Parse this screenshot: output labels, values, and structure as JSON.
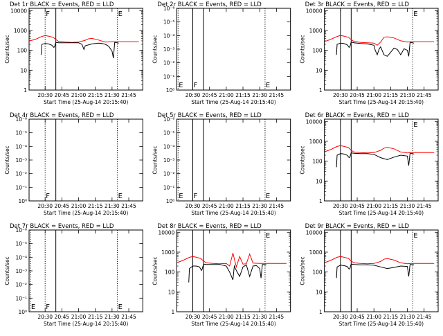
{
  "chart_data": [
    {
      "type": "line",
      "title": "Det 1r BLACK = Events, RED = LLD",
      "xlabel": "Start Time (25-Aug-14 20:15:40)",
      "ylabel": "Counts/sec",
      "x_tick_labels": [
        "20:30",
        "20:45",
        "21:00",
        "21:15",
        "21:30",
        "21:45"
      ],
      "x_tick_values": [
        20.5,
        20.75,
        21.0,
        21.25,
        21.5,
        21.75
      ],
      "xlim": [
        20.26,
        21.96
      ],
      "y_scale": "log",
      "y_tick_labels": [
        "1",
        "10",
        "100",
        "1000",
        "10000"
      ],
      "y_tick_values": [
        1,
        10,
        100,
        1000,
        10000
      ],
      "ylim": [
        1,
        13000
      ],
      "markers": [
        {
          "label": "F",
          "x": 20.5,
          "style": "dotted"
        },
        {
          "label": "",
          "x": 20.66,
          "style": "solid"
        },
        {
          "label": "E",
          "x": 21.58,
          "style": "dotted"
        }
      ],
      "series": [
        {
          "color": "#ff0000",
          "x": [
            20.27,
            20.35,
            20.45,
            20.5,
            20.55,
            20.62,
            20.66,
            20.7,
            20.8,
            20.9,
            21.0,
            21.1,
            21.15,
            21.2,
            21.3,
            21.4,
            21.5,
            21.55,
            21.6,
            21.7,
            21.8,
            21.9
          ],
          "y": [
            300,
            350,
            500,
            550,
            520,
            450,
            350,
            280,
            260,
            250,
            260,
            320,
            380,
            400,
            330,
            260,
            270,
            270,
            270,
            270,
            270,
            270
          ]
        },
        {
          "color": "#000000",
          "x": [
            20.44,
            20.45,
            20.5,
            20.55,
            20.6,
            20.63,
            20.64,
            20.66,
            20.7,
            20.8,
            20.9,
            21.0,
            21.05,
            21.08,
            21.1,
            21.2,
            21.3,
            21.35,
            21.4,
            21.45,
            21.5,
            21.52,
            21.54,
            21.55,
            21.6
          ],
          "y": [
            60,
            200,
            220,
            210,
            180,
            140,
            150,
            250,
            240,
            240,
            240,
            240,
            200,
            110,
            170,
            210,
            230,
            220,
            200,
            160,
            90,
            40,
            250,
            250,
            230
          ]
        }
      ]
    },
    {
      "type": "line",
      "title": "Det 2r BLACK = Events, RED = LLD",
      "xlabel": "Start Time (25-Aug-14 20:15:40)",
      "ylabel": "Counts/sec",
      "x_tick_labels": [
        "20:30",
        "20:45",
        "21:00",
        "21:15",
        "21:30",
        "21:45"
      ],
      "x_tick_values": [
        20.5,
        20.75,
        21.0,
        21.25,
        21.5,
        21.75
      ],
      "xlim": [
        20.26,
        21.96
      ],
      "y_scale": "log",
      "y_tick_labels": [
        "10⁰",
        "10⁻¹",
        "10⁻²",
        "10⁻³",
        "10⁻⁴",
        "10⁻⁵",
        "10⁻⁶"
      ],
      "y_tick_values": [
        0,
        1,
        2,
        3,
        4,
        5,
        6
      ],
      "ylim": [
        0,
        6
      ],
      "markers": [
        {
          "label": "E",
          "x": 20.28,
          "style": "dotted"
        },
        {
          "label": "F",
          "x": 20.5,
          "style": "solid"
        },
        {
          "label": "",
          "x": 20.66,
          "style": "solid"
        },
        {
          "label": "E",
          "x": 21.58,
          "style": "dotted"
        }
      ],
      "series": []
    },
    {
      "type": "line",
      "title": "Det 3r BLACK = Events, RED = LLD",
      "xlabel": "Start Time (25-Aug-14 20:15:40)",
      "ylabel": "Counts/sec",
      "x_tick_labels": [
        "20:30",
        "20:45",
        "21:00",
        "21:15",
        "21:30",
        "21:45"
      ],
      "x_tick_values": [
        20.5,
        20.75,
        21.0,
        21.25,
        21.5,
        21.75
      ],
      "xlim": [
        20.26,
        21.96
      ],
      "y_scale": "log",
      "y_tick_labels": [
        "1",
        "10",
        "100",
        "1000",
        "10000"
      ],
      "y_tick_values": [
        1,
        10,
        100,
        1000,
        10000
      ],
      "ylim": [
        1,
        13000
      ],
      "markers": [
        {
          "label": "",
          "x": 20.5,
          "style": "solid"
        },
        {
          "label": "",
          "x": 20.66,
          "style": "solid"
        },
        {
          "label": "E",
          "x": 21.58,
          "style": "dotted"
        }
      ],
      "series": [
        {
          "color": "#ff0000",
          "x": [
            20.27,
            20.35,
            20.45,
            20.5,
            20.55,
            20.62,
            20.66,
            20.7,
            20.8,
            20.9,
            21.0,
            21.05,
            21.1,
            21.15,
            21.2,
            21.3,
            21.4,
            21.5,
            21.55,
            21.6,
            21.7,
            21.8,
            21.9
          ],
          "y": [
            280,
            350,
            500,
            560,
            520,
            450,
            350,
            280,
            250,
            240,
            230,
            180,
            260,
            450,
            480,
            420,
            300,
            260,
            270,
            270,
            270,
            270,
            270
          ]
        },
        {
          "color": "#000000",
          "x": [
            20.44,
            20.45,
            20.5,
            20.55,
            20.6,
            20.63,
            20.64,
            20.66,
            20.7,
            20.8,
            20.9,
            21.0,
            21.02,
            21.05,
            21.08,
            21.1,
            21.15,
            21.2,
            21.25,
            21.3,
            21.35,
            21.4,
            21.45,
            21.5,
            21.52,
            21.54,
            21.55,
            21.6
          ],
          "y": [
            60,
            200,
            230,
            220,
            190,
            140,
            150,
            260,
            240,
            220,
            210,
            180,
            100,
            60,
            120,
            150,
            60,
            50,
            80,
            130,
            110,
            60,
            120,
            100,
            50,
            250,
            250,
            230
          ]
        }
      ]
    },
    {
      "type": "line",
      "title": "Det 4r BLACK = Events, RED = LLD",
      "xlabel": "Start Time (25-Aug-14 20:15:40)",
      "ylabel": "Counts/sec",
      "x_tick_labels": [
        "20:30",
        "20:45",
        "21:00",
        "21:15",
        "21:30",
        "21:45"
      ],
      "x_tick_values": [
        20.5,
        20.75,
        21.0,
        21.25,
        21.5,
        21.75
      ],
      "xlim": [
        20.26,
        21.96
      ],
      "y_scale": "log",
      "y_tick_labels": [
        "10⁰",
        "10⁻¹",
        "10⁻²",
        "10⁻³",
        "10⁻⁴",
        "10⁻⁵",
        "10⁻⁶"
      ],
      "y_tick_values": [
        0,
        1,
        2,
        3,
        4,
        5,
        6
      ],
      "ylim": [
        0,
        6
      ],
      "markers": [
        {
          "label": "F",
          "x": 20.5,
          "style": "dotted"
        },
        {
          "label": "",
          "x": 20.66,
          "style": "solid"
        },
        {
          "label": "E",
          "x": 21.58,
          "style": "dotted"
        }
      ],
      "series": []
    },
    {
      "type": "line",
      "title": "Det 5r BLACK = Events, RED = LLD",
      "xlabel": "Start Time (25-Aug-14 20:15:40)",
      "ylabel": "Counts/sec",
      "x_tick_labels": [
        "20:30",
        "20:45",
        "21:00",
        "21:15",
        "21:30",
        "21:45"
      ],
      "x_tick_values": [
        20.5,
        20.75,
        21.0,
        21.25,
        21.5,
        21.75
      ],
      "xlim": [
        20.26,
        21.96
      ],
      "y_scale": "log",
      "y_tick_labels": [
        "10⁰",
        "10⁻¹",
        "10⁻²",
        "10⁻³",
        "10⁻⁴",
        "10⁻⁵",
        "10⁻⁶"
      ],
      "y_tick_values": [
        0,
        1,
        2,
        3,
        4,
        5,
        6
      ],
      "ylim": [
        0,
        6
      ],
      "markers": [
        {
          "label": "E",
          "x": 20.28,
          "style": "dotted"
        },
        {
          "label": "F",
          "x": 20.5,
          "style": "solid"
        },
        {
          "label": "",
          "x": 20.66,
          "style": "solid"
        },
        {
          "label": "E",
          "x": 21.58,
          "style": "dotted"
        }
      ],
      "series": []
    },
    {
      "type": "line",
      "title": "Det 6r BLACK = Events, RED = LLD",
      "xlabel": "Start Time (25-Aug-14 20:15:40)",
      "ylabel": "Counts/sec",
      "x_tick_labels": [
        "20:30",
        "20:45",
        "21:00",
        "21:15",
        "21:30",
        "21:45"
      ],
      "x_tick_values": [
        20.5,
        20.75,
        21.0,
        21.25,
        21.5,
        21.75
      ],
      "xlim": [
        20.26,
        21.96
      ],
      "y_scale": "log",
      "y_tick_labels": [
        "1",
        "10",
        "100",
        "1000",
        "10000"
      ],
      "y_tick_values": [
        1,
        10,
        100,
        1000,
        10000
      ],
      "ylim": [
        1,
        13000
      ],
      "markers": [
        {
          "label": "",
          "x": 20.5,
          "style": "solid"
        },
        {
          "label": "",
          "x": 20.66,
          "style": "solid"
        },
        {
          "label": "E",
          "x": 21.58,
          "style": "dotted"
        }
      ],
      "series": [
        {
          "color": "#ff0000",
          "x": [
            20.27,
            20.35,
            20.45,
            20.5,
            20.55,
            20.62,
            20.66,
            20.7,
            20.8,
            20.9,
            21.0,
            21.1,
            21.15,
            21.2,
            21.3,
            21.4,
            21.5,
            21.55,
            21.6,
            21.7,
            21.8,
            21.9
          ],
          "y": [
            300,
            380,
            550,
            600,
            560,
            480,
            360,
            290,
            270,
            260,
            270,
            350,
            450,
            500,
            420,
            290,
            260,
            270,
            270,
            270,
            270,
            270
          ]
        },
        {
          "color": "#000000",
          "x": [
            20.44,
            20.45,
            20.5,
            20.55,
            20.6,
            20.63,
            20.64,
            20.66,
            20.7,
            20.8,
            20.9,
            21.0,
            21.1,
            21.2,
            21.3,
            21.4,
            21.5,
            21.52,
            21.54,
            21.55,
            21.6
          ],
          "y": [
            50,
            200,
            240,
            230,
            200,
            150,
            160,
            260,
            250,
            240,
            240,
            220,
            150,
            120,
            160,
            200,
            180,
            60,
            250,
            250,
            230
          ]
        }
      ]
    },
    {
      "type": "line",
      "title": "Det 7r BLACK = Events, RED = LLD",
      "xlabel": "Start Time (25-Aug-14 20:15:40)",
      "ylabel": "Counts/sec",
      "x_tick_labels": [
        "20:30",
        "20:45",
        "21:00",
        "21:15",
        "21:30",
        "21:45"
      ],
      "x_tick_values": [
        20.5,
        20.75,
        21.0,
        21.25,
        21.5,
        21.75
      ],
      "xlim": [
        20.26,
        21.96
      ],
      "y_scale": "log",
      "y_tick_labels": [
        "10⁰",
        "10⁻¹",
        "10⁻²",
        "10⁻³",
        "10⁻⁴",
        "10⁻⁵",
        "10⁻⁶"
      ],
      "y_tick_values": [
        0,
        1,
        2,
        3,
        4,
        5,
        6
      ],
      "ylim": [
        0,
        6
      ],
      "markers": [
        {
          "label": "E",
          "x": 20.28,
          "style": "dotted"
        },
        {
          "label": "F",
          "x": 20.5,
          "style": "dotted"
        },
        {
          "label": "",
          "x": 20.66,
          "style": "solid"
        },
        {
          "label": "E",
          "x": 21.58,
          "style": "dotted"
        }
      ],
      "series": []
    },
    {
      "type": "line",
      "title": "Det 8r BLACK = Events, RED = LLD",
      "xlabel": "Start Time (25-Aug-14 20:15:40)",
      "ylabel": "Counts/sec",
      "x_tick_labels": [
        "20:30",
        "20:45",
        "21:00",
        "21:15",
        "21:30",
        "21:45"
      ],
      "x_tick_values": [
        20.5,
        20.75,
        21.0,
        21.25,
        21.5,
        21.75
      ],
      "xlim": [
        20.26,
        21.96
      ],
      "y_scale": "log",
      "y_tick_labels": [
        "1",
        "10",
        "100",
        "1000",
        "10000"
      ],
      "y_tick_values": [
        1,
        10,
        100,
        1000,
        10000
      ],
      "ylim": [
        1,
        13000
      ],
      "markers": [
        {
          "label": "",
          "x": 20.5,
          "style": "solid"
        },
        {
          "label": "",
          "x": 20.66,
          "style": "solid"
        },
        {
          "label": "E",
          "x": 21.58,
          "style": "dotted"
        }
      ],
      "series": [
        {
          "color": "#ff0000",
          "x": [
            20.27,
            20.35,
            20.45,
            20.5,
            20.55,
            20.62,
            20.66,
            20.7,
            20.8,
            20.9,
            21.0,
            21.05,
            21.1,
            21.15,
            21.2,
            21.25,
            21.3,
            21.35,
            21.4,
            21.5,
            21.6,
            21.7,
            21.8,
            21.9
          ],
          "y": [
            300,
            380,
            550,
            600,
            560,
            480,
            360,
            290,
            270,
            260,
            270,
            200,
            900,
            180,
            600,
            250,
            260,
            800,
            280,
            270,
            270,
            270,
            270,
            270
          ]
        },
        {
          "color": "#000000",
          "x": [
            20.44,
            20.45,
            20.5,
            20.55,
            20.6,
            20.63,
            20.64,
            20.66,
            20.7,
            20.8,
            20.9,
            21.0,
            21.05,
            21.1,
            21.12,
            21.15,
            21.2,
            21.25,
            21.3,
            21.35,
            21.4,
            21.45,
            21.5,
            21.52,
            21.54,
            21.55,
            21.6
          ],
          "y": [
            30,
            150,
            200,
            200,
            180,
            120,
            140,
            250,
            240,
            240,
            240,
            200,
            100,
            40,
            200,
            120,
            60,
            180,
            230,
            60,
            200,
            210,
            150,
            50,
            240,
            240,
            230
          ]
        }
      ]
    },
    {
      "type": "line",
      "title": "Det 9r BLACK = Events, RED = LLD",
      "xlabel": "Start Time (25-Aug-14 20:15:40)",
      "ylabel": "Counts/sec",
      "x_tick_labels": [
        "20:30",
        "20:45",
        "21:00",
        "21:15",
        "21:30",
        "21:45"
      ],
      "x_tick_values": [
        20.5,
        20.75,
        21.0,
        21.25,
        21.5,
        21.75
      ],
      "xlim": [
        20.26,
        21.96
      ],
      "y_scale": "log",
      "y_tick_labels": [
        "1",
        "10",
        "100",
        "1000",
        "10000"
      ],
      "y_tick_values": [
        1,
        10,
        100,
        1000,
        10000
      ],
      "ylim": [
        1,
        13000
      ],
      "markers": [
        {
          "label": "",
          "x": 20.5,
          "style": "solid"
        },
        {
          "label": "",
          "x": 20.66,
          "style": "solid"
        },
        {
          "label": "E",
          "x": 21.58,
          "style": "dotted"
        }
      ],
      "series": [
        {
          "color": "#ff0000",
          "x": [
            20.27,
            20.35,
            20.45,
            20.5,
            20.55,
            20.62,
            20.66,
            20.7,
            20.8,
            20.9,
            21.0,
            21.1,
            21.15,
            21.2,
            21.3,
            21.4,
            21.5,
            21.55,
            21.6,
            21.7,
            21.8,
            21.9
          ],
          "y": [
            300,
            380,
            550,
            600,
            560,
            480,
            360,
            290,
            270,
            260,
            270,
            340,
            440,
            480,
            400,
            290,
            260,
            270,
            270,
            270,
            270,
            270
          ]
        },
        {
          "color": "#000000",
          "x": [
            20.44,
            20.45,
            20.5,
            20.55,
            20.6,
            20.63,
            20.64,
            20.66,
            20.7,
            20.8,
            20.9,
            21.0,
            21.1,
            21.2,
            21.3,
            21.4,
            21.5,
            21.52,
            21.54,
            21.55,
            21.6
          ],
          "y": [
            50,
            180,
            220,
            210,
            190,
            140,
            150,
            250,
            240,
            230,
            230,
            220,
            180,
            150,
            170,
            200,
            190,
            60,
            240,
            240,
            230
          ]
        }
      ]
    }
  ]
}
